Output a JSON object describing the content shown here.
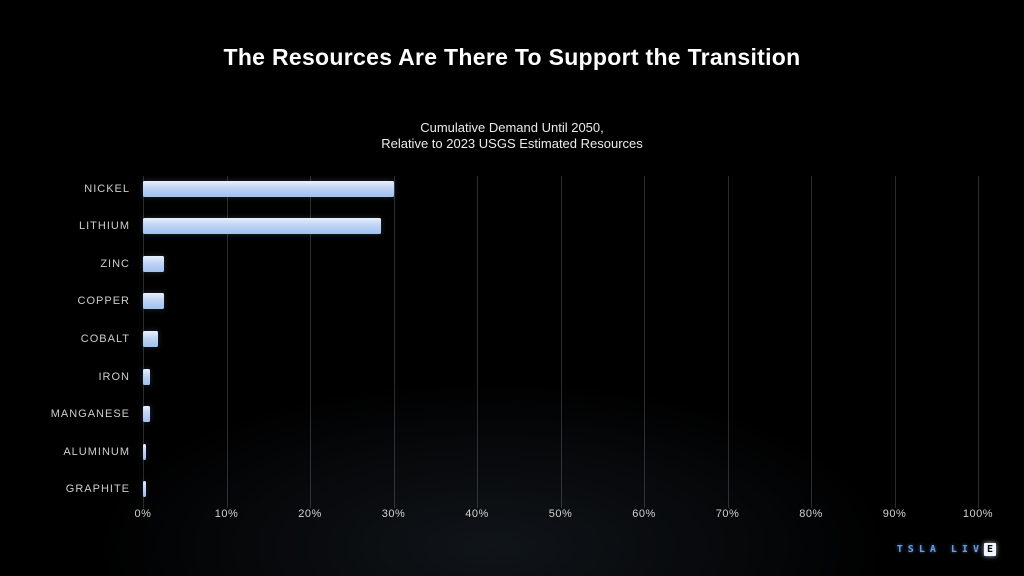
{
  "slide": {
    "title": "The Resources Are There To Support the Transition",
    "subtitle_line1": "Cumulative Demand Until 2050,",
    "subtitle_line2": "Relative to 2023 USGS Estimated Resources"
  },
  "chart_data": {
    "type": "bar",
    "orientation": "horizontal",
    "title": "Cumulative Demand Until 2050, Relative to 2023 USGS Estimated Resources",
    "categories": [
      "NICKEL",
      "LITHIUM",
      "ZINC",
      "COPPER",
      "COBALT",
      "IRON",
      "MANGANESE",
      "ALUMINUM",
      "GRAPHITE"
    ],
    "values": [
      30,
      28.5,
      2.5,
      2.5,
      1.8,
      0.8,
      0.8,
      0.4,
      0.3
    ],
    "xlabel": "",
    "ylabel": "",
    "xlim": [
      0,
      100
    ],
    "x_ticks": [
      "0%",
      "10%",
      "20%",
      "30%",
      "40%",
      "50%",
      "60%",
      "70%",
      "80%",
      "90%",
      "100%"
    ],
    "grid": true,
    "legend": "none",
    "bar_color_top": "#e8f0fc",
    "bar_color_bottom": "#9fc0ee",
    "background_color": "#000000",
    "gridline_color": "#3a4048"
  },
  "logo": {
    "text": "TSLA LIVE",
    "color": "#6d9ad8"
  }
}
